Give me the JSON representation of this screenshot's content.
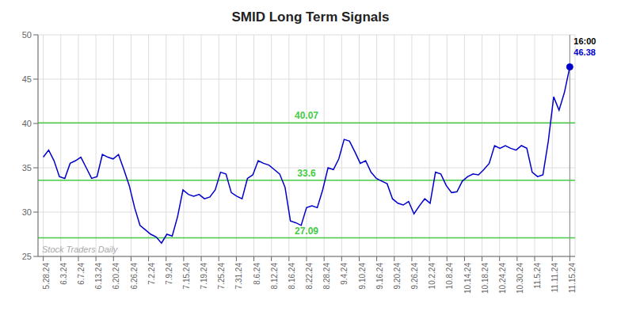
{
  "chart_data": {
    "type": "line",
    "title": "SMID Long Term Signals",
    "color": "#0000cc",
    "grid": true,
    "x": [
      0,
      0.3061,
      0.6122,
      0.9184,
      1.2245,
      1.5306,
      1.8367,
      2.1429,
      2.449,
      2.7551,
      3.0612,
      3.3673,
      3.6735,
      3.9796,
      4.2857,
      4.5918,
      4.898,
      5.2041,
      5.5102,
      5.8163,
      6.1224,
      6.4286,
      6.7347,
      7.0408,
      7.3469,
      7.6531,
      7.9592,
      8.2653,
      8.5714,
      8.8776,
      9.1837,
      9.4898,
      9.7959,
      10.102,
      10.4082,
      10.7143,
      11.0204,
      11.3265,
      11.6327,
      11.9388,
      12.2449,
      12.551,
      12.8571,
      13.1633,
      13.4694,
      13.7755,
      14.0816,
      14.3878,
      14.6939,
      15,
      15.3061,
      15.6122,
      15.9184,
      16.2245,
      16.5306,
      16.8367,
      17.1429,
      17.449,
      17.7551,
      18.0612,
      18.3673,
      18.6735,
      18.9796,
      19.2857,
      19.5918,
      19.898,
      20.2041,
      20.5102,
      20.8163,
      21.1224,
      21.4286,
      21.7347,
      22.0408,
      22.3469,
      22.6531,
      22.9592,
      23.2653,
      23.5714,
      23.8776,
      24.1837,
      24.4898,
      24.7959,
      25.102,
      25.4082,
      25.7143,
      26.0204,
      26.3265,
      26.6327,
      26.9388,
      27.2449,
      27.551,
      27.8571,
      28.1633,
      28.4694,
      28.7755,
      29.0816,
      29.3878,
      29.6939,
      30
    ],
    "values": [
      36.2,
      37.0,
      35.8,
      34.0,
      33.8,
      35.5,
      35.8,
      36.2,
      35.0,
      33.8,
      34.0,
      36.5,
      36.2,
      36.0,
      36.5,
      34.8,
      33.0,
      30.5,
      28.5,
      28.0,
      27.5,
      27.2,
      26.5,
      27.5,
      27.3,
      29.5,
      32.5,
      32.0,
      31.8,
      32.0,
      31.5,
      31.7,
      32.5,
      34.5,
      34.3,
      32.2,
      31.8,
      31.5,
      33.8,
      34.2,
      35.8,
      35.5,
      35.3,
      34.8,
      34.3,
      32.8,
      29.0,
      28.8,
      28.5,
      30.5,
      30.7,
      30.5,
      32.5,
      35.0,
      34.8,
      36.0,
      38.2,
      38.0,
      36.8,
      35.5,
      35.8,
      34.5,
      33.8,
      33.5,
      33.2,
      31.5,
      31.0,
      30.8,
      31.2,
      29.8,
      30.7,
      31.5,
      31.0,
      34.5,
      34.3,
      33.0,
      32.2,
      32.3,
      33.5,
      34.0,
      34.3,
      34.2,
      34.8,
      35.5,
      37.5,
      37.2,
      37.5,
      37.2,
      37.0,
      37.5,
      37.2,
      34.5,
      34.0,
      34.2,
      38.0,
      43.0,
      41.5,
      43.5,
      46.38
    ],
    "xlim": [
      -0.3,
      30.3
    ],
    "xticks": [
      {
        "value": 0,
        "label": "5.28.24"
      },
      {
        "value": 1,
        "label": "6.3.24"
      },
      {
        "value": 2,
        "label": "6.7.24"
      },
      {
        "value": 3,
        "label": "6.13.24"
      },
      {
        "value": 4,
        "label": "6.20.24"
      },
      {
        "value": 5,
        "label": "6.26.24"
      },
      {
        "value": 6,
        "label": "7.2.24"
      },
      {
        "value": 7,
        "label": "7.9.24"
      },
      {
        "value": 8,
        "label": "7.15.24"
      },
      {
        "value": 9,
        "label": "7.19.24"
      },
      {
        "value": 10,
        "label": "7.25.24"
      },
      {
        "value": 11,
        "label": "7.31.24"
      },
      {
        "value": 12,
        "label": "8.6.24"
      },
      {
        "value": 13,
        "label": "8.12.24"
      },
      {
        "value": 14,
        "label": "8.16.24"
      },
      {
        "value": 15,
        "label": "8.22.24"
      },
      {
        "value": 16,
        "label": "8.28.24"
      },
      {
        "value": 17,
        "label": "9.4.24"
      },
      {
        "value": 18,
        "label": "9.10.24"
      },
      {
        "value": 19,
        "label": "9.16.24"
      },
      {
        "value": 20,
        "label": "9.20.24"
      },
      {
        "value": 21,
        "label": "9.26.24"
      },
      {
        "value": 22,
        "label": "10.2.24"
      },
      {
        "value": 23,
        "label": "10.8.24"
      },
      {
        "value": 24,
        "label": "10.14.24"
      },
      {
        "value": 25,
        "label": "10.18.24"
      },
      {
        "value": 26,
        "label": "10.24.24"
      },
      {
        "value": 27,
        "label": "10.30.24"
      },
      {
        "value": 28,
        "label": "11.5.24"
      },
      {
        "value": 29,
        "label": "11.11.24"
      },
      {
        "value": 30,
        "label": "11.15.24"
      }
    ],
    "ylim": [
      25,
      50
    ],
    "yticks": [
      25,
      30,
      35,
      40,
      45,
      50
    ],
    "hlines": [
      {
        "value": 27.09,
        "label": "27.09"
      },
      {
        "value": 33.6,
        "label": "33.6"
      },
      {
        "value": 40.07,
        "label": "40.07"
      }
    ],
    "hline_color": "#44cc44",
    "annotations": [
      {
        "text": "16:00"
      },
      {
        "text": "46.38",
        "color": "#0000cc"
      }
    ],
    "watermark": "Stock Traders Daily"
  }
}
